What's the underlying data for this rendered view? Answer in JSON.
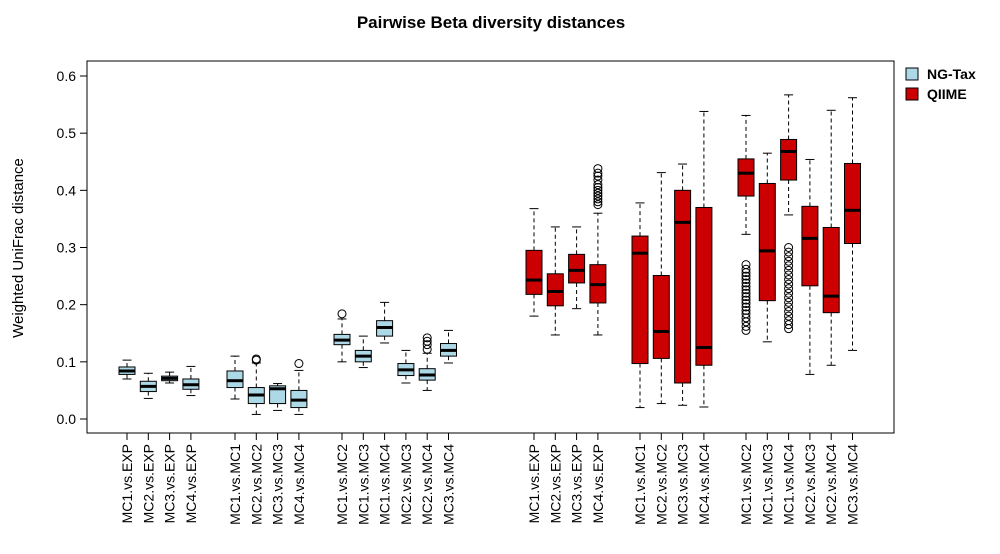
{
  "chart_data": {
    "type": "box",
    "title": "Pairwise Beta diversity distances",
    "xlabel": "",
    "ylabel": "Weighted UniFrac distance",
    "ylim": [
      0,
      0.6
    ],
    "yticks": [
      "0.0",
      "0.1",
      "0.2",
      "0.3",
      "0.4",
      "0.5",
      "0.6"
    ],
    "grid": false,
    "legend_position": "top-right",
    "series": [
      {
        "name": "NG-Tax",
        "color": "#add8e6"
      },
      {
        "name": "QIIME",
        "color": "#cc0000"
      }
    ],
    "boxes": [
      {
        "label": "MC1.vs.EXP",
        "series": "NG-Tax",
        "group": 0,
        "min": 0.07,
        "q1": 0.078,
        "median": 0.084,
        "q3": 0.091,
        "max": 0.103,
        "outliers": []
      },
      {
        "label": "MC2.vs.EXP",
        "series": "NG-Tax",
        "group": 0,
        "min": 0.036,
        "q1": 0.048,
        "median": 0.057,
        "q3": 0.066,
        "max": 0.08,
        "outliers": []
      },
      {
        "label": "MC3.vs.EXP",
        "series": "NG-Tax",
        "group": 0,
        "min": 0.063,
        "q1": 0.067,
        "median": 0.071,
        "q3": 0.075,
        "max": 0.082,
        "outliers": []
      },
      {
        "label": "MC4.vs.EXP",
        "series": "NG-Tax",
        "group": 0,
        "min": 0.041,
        "q1": 0.052,
        "median": 0.06,
        "q3": 0.07,
        "max": 0.092,
        "outliers": []
      },
      {
        "label": "MC1.vs.MC1",
        "series": "NG-Tax",
        "group": 1,
        "min": 0.035,
        "q1": 0.055,
        "median": 0.067,
        "q3": 0.084,
        "max": 0.11,
        "outliers": []
      },
      {
        "label": "MC2.vs.MC2",
        "series": "NG-Tax",
        "group": 1,
        "min": 0.008,
        "q1": 0.027,
        "median": 0.042,
        "q3": 0.055,
        "max": 0.098,
        "outliers": [
          0.103,
          0.105
        ]
      },
      {
        "label": "MC3.vs.MC3",
        "series": "NG-Tax",
        "group": 1,
        "min": 0.015,
        "q1": 0.027,
        "median": 0.053,
        "q3": 0.058,
        "max": 0.062,
        "outliers": []
      },
      {
        "label": "MC4.vs.MC4",
        "series": "NG-Tax",
        "group": 1,
        "min": 0.008,
        "q1": 0.02,
        "median": 0.033,
        "q3": 0.05,
        "max": 0.085,
        "outliers": [
          0.097
        ]
      },
      {
        "label": "MC1.vs.MC2",
        "series": "NG-Tax",
        "group": 2,
        "min": 0.1,
        "q1": 0.13,
        "median": 0.138,
        "q3": 0.148,
        "max": 0.175,
        "outliers": [
          0.184
        ]
      },
      {
        "label": "MC1.vs.MC3",
        "series": "NG-Tax",
        "group": 2,
        "min": 0.09,
        "q1": 0.1,
        "median": 0.11,
        "q3": 0.12,
        "max": 0.145,
        "outliers": []
      },
      {
        "label": "MC1.vs.MC4",
        "series": "NG-Tax",
        "group": 2,
        "min": 0.133,
        "q1": 0.145,
        "median": 0.16,
        "q3": 0.172,
        "max": 0.204,
        "outliers": []
      },
      {
        "label": "MC2.vs.MC3",
        "series": "NG-Tax",
        "group": 2,
        "min": 0.063,
        "q1": 0.076,
        "median": 0.086,
        "q3": 0.097,
        "max": 0.12,
        "outliers": []
      },
      {
        "label": "MC2.vs.MC4",
        "series": "NG-Tax",
        "group": 2,
        "min": 0.05,
        "q1": 0.068,
        "median": 0.077,
        "q3": 0.088,
        "max": 0.115,
        "outliers": [
          0.122,
          0.13,
          0.136,
          0.142
        ]
      },
      {
        "label": "MC3.vs.MC4",
        "series": "NG-Tax",
        "group": 2,
        "min": 0.098,
        "q1": 0.11,
        "median": 0.12,
        "q3": 0.132,
        "max": 0.155,
        "outliers": []
      },
      {
        "label": "MC1.vs.EXP",
        "series": "QIIME",
        "group": 3,
        "min": 0.18,
        "q1": 0.218,
        "median": 0.243,
        "q3": 0.295,
        "max": 0.368,
        "outliers": []
      },
      {
        "label": "MC2.vs.EXP",
        "series": "QIIME",
        "group": 3,
        "min": 0.147,
        "q1": 0.198,
        "median": 0.223,
        "q3": 0.254,
        "max": 0.336,
        "outliers": []
      },
      {
        "label": "MC3.vs.EXP",
        "series": "QIIME",
        "group": 3,
        "min": 0.193,
        "q1": 0.238,
        "median": 0.26,
        "q3": 0.288,
        "max": 0.336,
        "outliers": []
      },
      {
        "label": "MC4.vs.EXP",
        "series": "QIIME",
        "group": 3,
        "min": 0.147,
        "q1": 0.203,
        "median": 0.235,
        "q3": 0.27,
        "max": 0.36,
        "outliers": [
          0.375,
          0.38,
          0.385,
          0.39,
          0.395,
          0.4,
          0.405,
          0.41,
          0.418,
          0.425,
          0.43,
          0.438
        ]
      },
      {
        "label": "MC1.vs.MC1",
        "series": "QIIME",
        "group": 4,
        "min": 0.02,
        "q1": 0.097,
        "median": 0.29,
        "q3": 0.32,
        "max": 0.378,
        "outliers": []
      },
      {
        "label": "MC2.vs.MC2",
        "series": "QIIME",
        "group": 4,
        "min": 0.027,
        "q1": 0.106,
        "median": 0.153,
        "q3": 0.251,
        "max": 0.431,
        "outliers": []
      },
      {
        "label": "MC3.vs.MC3",
        "series": "QIIME",
        "group": 4,
        "min": 0.024,
        "q1": 0.063,
        "median": 0.344,
        "q3": 0.4,
        "max": 0.446,
        "outliers": []
      },
      {
        "label": "MC4.vs.MC4",
        "series": "QIIME",
        "group": 4,
        "min": 0.021,
        "q1": 0.094,
        "median": 0.125,
        "q3": 0.37,
        "max": 0.538,
        "outliers": []
      },
      {
        "label": "MC1.vs.MC2",
        "series": "QIIME",
        "group": 5,
        "min": 0.323,
        "q1": 0.39,
        "median": 0.43,
        "q3": 0.455,
        "max": 0.531,
        "outliers": [
          0.155,
          0.162,
          0.17,
          0.177,
          0.184,
          0.19,
          0.196,
          0.202,
          0.208,
          0.214,
          0.22,
          0.226,
          0.232,
          0.238,
          0.244,
          0.25,
          0.256,
          0.262,
          0.27
        ]
      },
      {
        "label": "MC1.vs.MC3",
        "series": "QIIME",
        "group": 5,
        "min": 0.135,
        "q1": 0.207,
        "median": 0.294,
        "q3": 0.412,
        "max": 0.465,
        "outliers": []
      },
      {
        "label": "MC1.vs.MC4",
        "series": "QIIME",
        "group": 5,
        "min": 0.357,
        "q1": 0.418,
        "median": 0.468,
        "q3": 0.489,
        "max": 0.567,
        "outliers": [
          0.158,
          0.165,
          0.172,
          0.18,
          0.188,
          0.196,
          0.204,
          0.212,
          0.22,
          0.228,
          0.236,
          0.244,
          0.252,
          0.26,
          0.268,
          0.276,
          0.284,
          0.292,
          0.3
        ]
      },
      {
        "label": "MC2.vs.MC3",
        "series": "QIIME",
        "group": 5,
        "min": 0.078,
        "q1": 0.233,
        "median": 0.316,
        "q3": 0.372,
        "max": 0.454,
        "outliers": []
      },
      {
        "label": "MC2.vs.MC4",
        "series": "QIIME",
        "group": 5,
        "min": 0.094,
        "q1": 0.186,
        "median": 0.215,
        "q3": 0.335,
        "max": 0.54,
        "outliers": []
      },
      {
        "label": "MC3.vs.MC4",
        "series": "QIIME",
        "group": 5,
        "min": 0.12,
        "q1": 0.307,
        "median": 0.365,
        "q3": 0.447,
        "max": 0.562,
        "outliers": []
      }
    ]
  }
}
